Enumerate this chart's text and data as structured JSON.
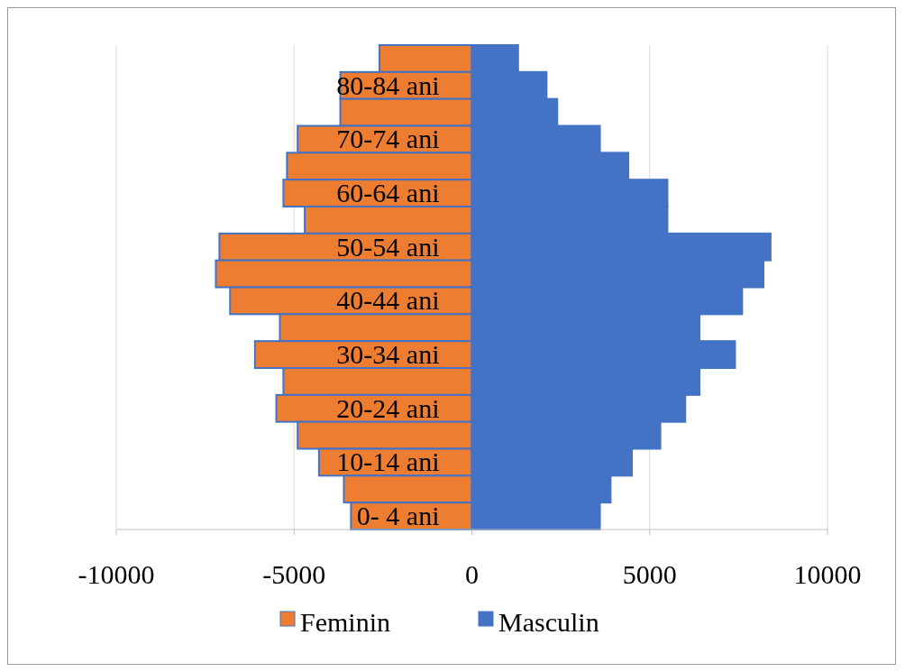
{
  "chart_data": {
    "type": "bar",
    "orientation": "horizontal",
    "stacked": true,
    "categories": [
      null,
      "80-84 ani",
      null,
      "70-74 ani",
      null,
      "60-64 ani",
      null,
      "50-54 ani",
      null,
      "40-44 ani",
      null,
      "30-34 ani",
      null,
      "20-24 ani",
      null,
      "10-14 ani",
      null,
      "0- 4 ani"
    ],
    "series": [
      {
        "name": "Feminin",
        "color": "#ed7d31",
        "values": [
          -2600,
          -3700,
          -3700,
          -4900,
          -5200,
          -5300,
          -4700,
          -7100,
          -7200,
          -6800,
          -5400,
          -6100,
          -5300,
          -5500,
          -4900,
          -4300,
          -3600,
          -3400
        ]
      },
      {
        "name": "Masculin",
        "color": "#4472c4",
        "values": [
          1300,
          2100,
          2400,
          3600,
          4400,
          5500,
          5500,
          8400,
          8200,
          7600,
          6400,
          7400,
          6400,
          6000,
          5300,
          4500,
          3900,
          3600
        ]
      }
    ],
    "xlim": [
      -10000,
      10000
    ],
    "xticks": [
      -10000,
      -5000,
      0,
      5000,
      10000
    ],
    "grid": "x",
    "legend": "bottom"
  }
}
